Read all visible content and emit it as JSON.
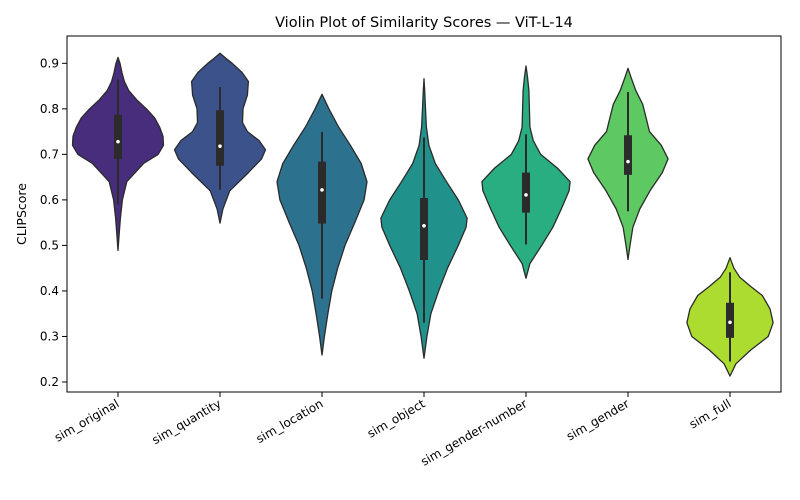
{
  "chart_data": {
    "type": "violin",
    "title": "Violin Plot of Similarity Scores — ViT-L-14",
    "xlabel": "",
    "ylabel": "CLIPScore",
    "ylim": [
      0.178,
      0.96
    ],
    "yticks": [
      0.2,
      0.3,
      0.4,
      0.5,
      0.6,
      0.7,
      0.8,
      0.9
    ],
    "grid": false,
    "legend": "none",
    "categories": [
      "sim_original",
      "sim_quantity",
      "sim_location",
      "sim_object",
      "sim_gender-number",
      "sim_gender",
      "sim_full"
    ],
    "series": [
      {
        "colors": [
          "#472d7b",
          "#3b528b",
          "#2c728e",
          "#21918c",
          "#28ae80",
          "#5ec962",
          "#addc30"
        ],
        "violins": [
          {
            "median": 0.728,
            "q1": 0.69,
            "q3": 0.787,
            "whisker_low": 0.59,
            "whisker_high": 0.865,
            "profile": [
              [
                0.489,
                0
              ],
              [
                0.52,
                0.02
              ],
              [
                0.56,
                0.05
              ],
              [
                0.6,
                0.09
              ],
              [
                0.64,
                0.18
              ],
              [
                0.68,
                0.52
              ],
              [
                0.7,
                0.82
              ],
              [
                0.72,
                0.93
              ],
              [
                0.74,
                0.92
              ],
              [
                0.76,
                0.85
              ],
              [
                0.78,
                0.75
              ],
              [
                0.8,
                0.58
              ],
              [
                0.82,
                0.38
              ],
              [
                0.84,
                0.22
              ],
              [
                0.86,
                0.13
              ],
              [
                0.88,
                0.08
              ],
              [
                0.9,
                0.04
              ],
              [
                0.913,
                0
              ]
            ]
          },
          {
            "median": 0.718,
            "q1": 0.675,
            "q3": 0.797,
            "whisker_low": 0.622,
            "whisker_high": 0.848,
            "profile": [
              [
                0.549,
                0
              ],
              [
                0.58,
                0.06
              ],
              [
                0.62,
                0.2
              ],
              [
                0.66,
                0.58
              ],
              [
                0.69,
                0.85
              ],
              [
                0.71,
                0.93
              ],
              [
                0.73,
                0.8
              ],
              [
                0.75,
                0.56
              ],
              [
                0.77,
                0.46
              ],
              [
                0.8,
                0.47
              ],
              [
                0.83,
                0.56
              ],
              [
                0.86,
                0.58
              ],
              [
                0.88,
                0.45
              ],
              [
                0.9,
                0.25
              ],
              [
                0.91,
                0.13
              ],
              [
                0.922,
                0
              ]
            ]
          },
          {
            "median": 0.622,
            "q1": 0.548,
            "q3": 0.684,
            "whisker_low": 0.383,
            "whisker_high": 0.749,
            "profile": [
              [
                0.259,
                0
              ],
              [
                0.3,
                0.05
              ],
              [
                0.35,
                0.12
              ],
              [
                0.4,
                0.2
              ],
              [
                0.45,
                0.32
              ],
              [
                0.5,
                0.47
              ],
              [
                0.55,
                0.67
              ],
              [
                0.6,
                0.86
              ],
              [
                0.64,
                0.92
              ],
              [
                0.68,
                0.8
              ],
              [
                0.72,
                0.58
              ],
              [
                0.76,
                0.34
              ],
              [
                0.8,
                0.14
              ],
              [
                0.832,
                0
              ]
            ]
          },
          {
            "median": 0.543,
            "q1": 0.468,
            "q3": 0.604,
            "whisker_low": 0.33,
            "whisker_high": 0.737,
            "profile": [
              [
                0.252,
                0
              ],
              [
                0.3,
                0.06
              ],
              [
                0.35,
                0.14
              ],
              [
                0.4,
                0.3
              ],
              [
                0.45,
                0.48
              ],
              [
                0.5,
                0.7
              ],
              [
                0.54,
                0.86
              ],
              [
                0.56,
                0.88
              ],
              [
                0.6,
                0.7
              ],
              [
                0.64,
                0.46
              ],
              [
                0.68,
                0.23
              ],
              [
                0.72,
                0.1
              ],
              [
                0.76,
                0.05
              ],
              [
                0.8,
                0.03
              ],
              [
                0.84,
                0.015
              ],
              [
                0.866,
                0
              ]
            ]
          },
          {
            "median": 0.611,
            "q1": 0.572,
            "q3": 0.66,
            "whisker_low": 0.502,
            "whisker_high": 0.744,
            "profile": [
              [
                0.428,
                0
              ],
              [
                0.46,
                0.08
              ],
              [
                0.5,
                0.32
              ],
              [
                0.54,
                0.55
              ],
              [
                0.58,
                0.72
              ],
              [
                0.62,
                0.88
              ],
              [
                0.64,
                0.9
              ],
              [
                0.67,
                0.64
              ],
              [
                0.7,
                0.3
              ],
              [
                0.73,
                0.15
              ],
              [
                0.76,
                0.08
              ],
              [
                0.8,
                0.07
              ],
              [
                0.84,
                0.06
              ],
              [
                0.87,
                0.03
              ],
              [
                0.894,
                0
              ]
            ]
          },
          {
            "median": 0.684,
            "q1": 0.655,
            "q3": 0.742,
            "whisker_low": 0.575,
            "whisker_high": 0.837,
            "profile": [
              [
                0.469,
                0
              ],
              [
                0.5,
                0.04
              ],
              [
                0.54,
                0.1
              ],
              [
                0.58,
                0.24
              ],
              [
                0.62,
                0.45
              ],
              [
                0.66,
                0.7
              ],
              [
                0.69,
                0.82
              ],
              [
                0.72,
                0.68
              ],
              [
                0.75,
                0.44
              ],
              [
                0.78,
                0.37
              ],
              [
                0.81,
                0.3
              ],
              [
                0.84,
                0.16
              ],
              [
                0.87,
                0.06
              ],
              [
                0.889,
                0
              ]
            ]
          },
          {
            "median": 0.331,
            "q1": 0.297,
            "q3": 0.374,
            "whisker_low": 0.245,
            "whisker_high": 0.441,
            "profile": [
              [
                0.213,
                0
              ],
              [
                0.24,
                0.12
              ],
              [
                0.27,
                0.42
              ],
              [
                0.3,
                0.78
              ],
              [
                0.33,
                0.88
              ],
              [
                0.36,
                0.82
              ],
              [
                0.39,
                0.66
              ],
              [
                0.41,
                0.42
              ],
              [
                0.43,
                0.2
              ],
              [
                0.45,
                0.08
              ],
              [
                0.473,
                0
              ]
            ]
          }
        ]
      }
    ]
  }
}
